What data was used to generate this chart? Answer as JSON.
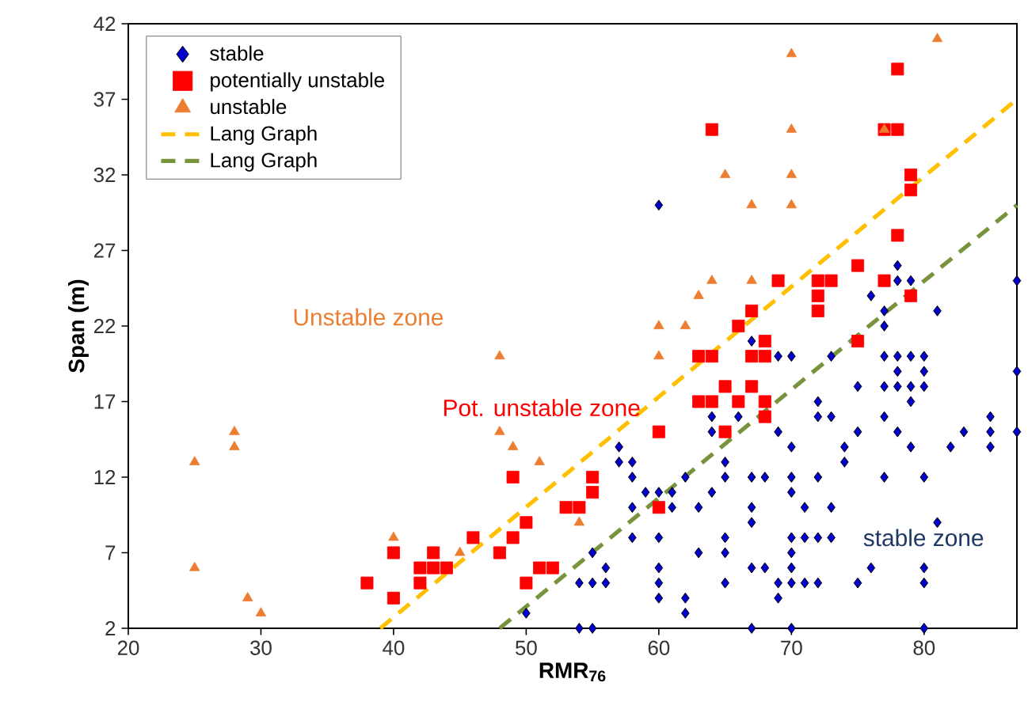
{
  "chart_data": {
    "type": "scatter",
    "xlabel": "RMR$_{76}$",
    "ylabel": "Span (m)",
    "xlim": [
      20,
      87
    ],
    "ylim": [
      2,
      42
    ],
    "xticks": [
      20,
      30,
      40,
      50,
      60,
      70,
      80
    ],
    "yticks": [
      2,
      7,
      12,
      17,
      22,
      27,
      32,
      37,
      42
    ],
    "grid": false,
    "legend": "top left",
    "annotations": [
      "Unstable zone",
      "Pot. unstable zone",
      "stable zone"
    ],
    "series": [
      {
        "name": "stable",
        "marker": "diamond",
        "color": "#0000cc",
        "x": [
          54,
          55,
          67,
          70,
          80,
          62,
          50,
          60,
          62,
          69,
          54,
          55,
          56,
          60,
          65,
          69,
          70,
          71,
          72,
          75,
          80,
          56,
          60,
          67,
          68,
          70,
          76,
          80,
          55,
          63,
          65,
          70,
          58,
          60,
          65,
          70,
          71,
          72,
          73,
          67,
          81,
          58,
          61,
          63,
          67,
          71,
          73,
          59,
          60,
          61,
          64,
          70,
          58,
          62,
          65,
          67,
          68,
          70,
          72,
          77,
          80,
          57,
          58,
          65,
          74,
          57,
          70,
          74,
          79,
          82,
          85,
          64,
          69,
          75,
          78,
          83,
          85,
          87,
          64,
          66,
          72,
          73,
          77,
          85,
          72,
          79,
          75,
          77,
          78,
          79,
          80,
          78,
          80,
          87,
          69,
          70,
          73,
          77,
          78,
          79,
          80,
          67,
          77,
          77,
          81,
          76,
          78,
          79,
          87,
          78,
          60
        ],
        "values": [
          2,
          2,
          2,
          2,
          2,
          3,
          3,
          4,
          4,
          4,
          5,
          5,
          5,
          5,
          5,
          5,
          5,
          5,
          5,
          5,
          5,
          6,
          6,
          6,
          6,
          6,
          6,
          6,
          7,
          7,
          7,
          7,
          8,
          8,
          8,
          8,
          8,
          8,
          8,
          9,
          9,
          10,
          10,
          10,
          10,
          10,
          10,
          11,
          11,
          11,
          11,
          11,
          12,
          12,
          12,
          12,
          12,
          12,
          12,
          12,
          12,
          13,
          13,
          13,
          13,
          14,
          14,
          14,
          14,
          14,
          14,
          15,
          15,
          15,
          15,
          15,
          15,
          15,
          16,
          16,
          16,
          16,
          16,
          16,
          17,
          17,
          18,
          18,
          18,
          18,
          18,
          19,
          19,
          19,
          20,
          20,
          20,
          20,
          20,
          20,
          20,
          21,
          22,
          23,
          23,
          24,
          25,
          25,
          25,
          26,
          30
        ]
      },
      {
        "name": "potentially unstable",
        "marker": "square",
        "color": "#ff0000",
        "x": [
          38,
          40,
          40,
          42,
          42,
          43,
          43,
          44,
          46,
          48,
          49,
          49,
          50,
          50,
          51,
          52,
          53,
          54,
          55,
          55,
          60,
          60,
          65,
          68,
          63,
          64,
          66,
          68,
          65,
          67,
          63,
          64,
          67,
          68,
          68,
          75,
          66,
          67,
          72,
          72,
          79,
          69,
          72,
          73,
          77,
          75,
          78,
          79,
          79,
          64,
          77,
          78,
          78
        ],
        "values": [
          5,
          7,
          4,
          6,
          5,
          7,
          6,
          6,
          8,
          7,
          8,
          12,
          9,
          5,
          6,
          6,
          10,
          10,
          12,
          11,
          10,
          15,
          15,
          16,
          17,
          17,
          17,
          17,
          18,
          18,
          20,
          20,
          20,
          20,
          21,
          21,
          22,
          23,
          23,
          24,
          24,
          25,
          25,
          25,
          25,
          26,
          28,
          31,
          32,
          35,
          35,
          35,
          39
        ]
      },
      {
        "name": "unstable",
        "marker": "triangle",
        "color": "#ed7d31",
        "x": [
          25,
          25,
          28,
          28,
          29,
          30,
          40,
          45,
          48,
          48,
          49,
          51,
          54,
          60,
          62,
          60,
          63,
          64,
          67,
          67,
          70,
          65,
          70,
          70,
          77,
          70,
          81
        ],
        "values": [
          13,
          6,
          15,
          14,
          4,
          3,
          8,
          7,
          20,
          15,
          14,
          13,
          9,
          22,
          22,
          20,
          24,
          25,
          25,
          30,
          30,
          32,
          32,
          35,
          35,
          40,
          41
        ]
      },
      {
        "name": "Lang Graph",
        "type": "line",
        "marker": "none",
        "line_style": "dashed",
        "color": "#ffc000",
        "x": [
          39,
          87
        ],
        "values": [
          2,
          37
        ]
      },
      {
        "name": "Lang Graph",
        "type": "line",
        "marker": "none",
        "line_style": "dashed",
        "color": "#77933c",
        "x": [
          48,
          87
        ],
        "values": [
          2,
          30
        ]
      }
    ]
  }
}
